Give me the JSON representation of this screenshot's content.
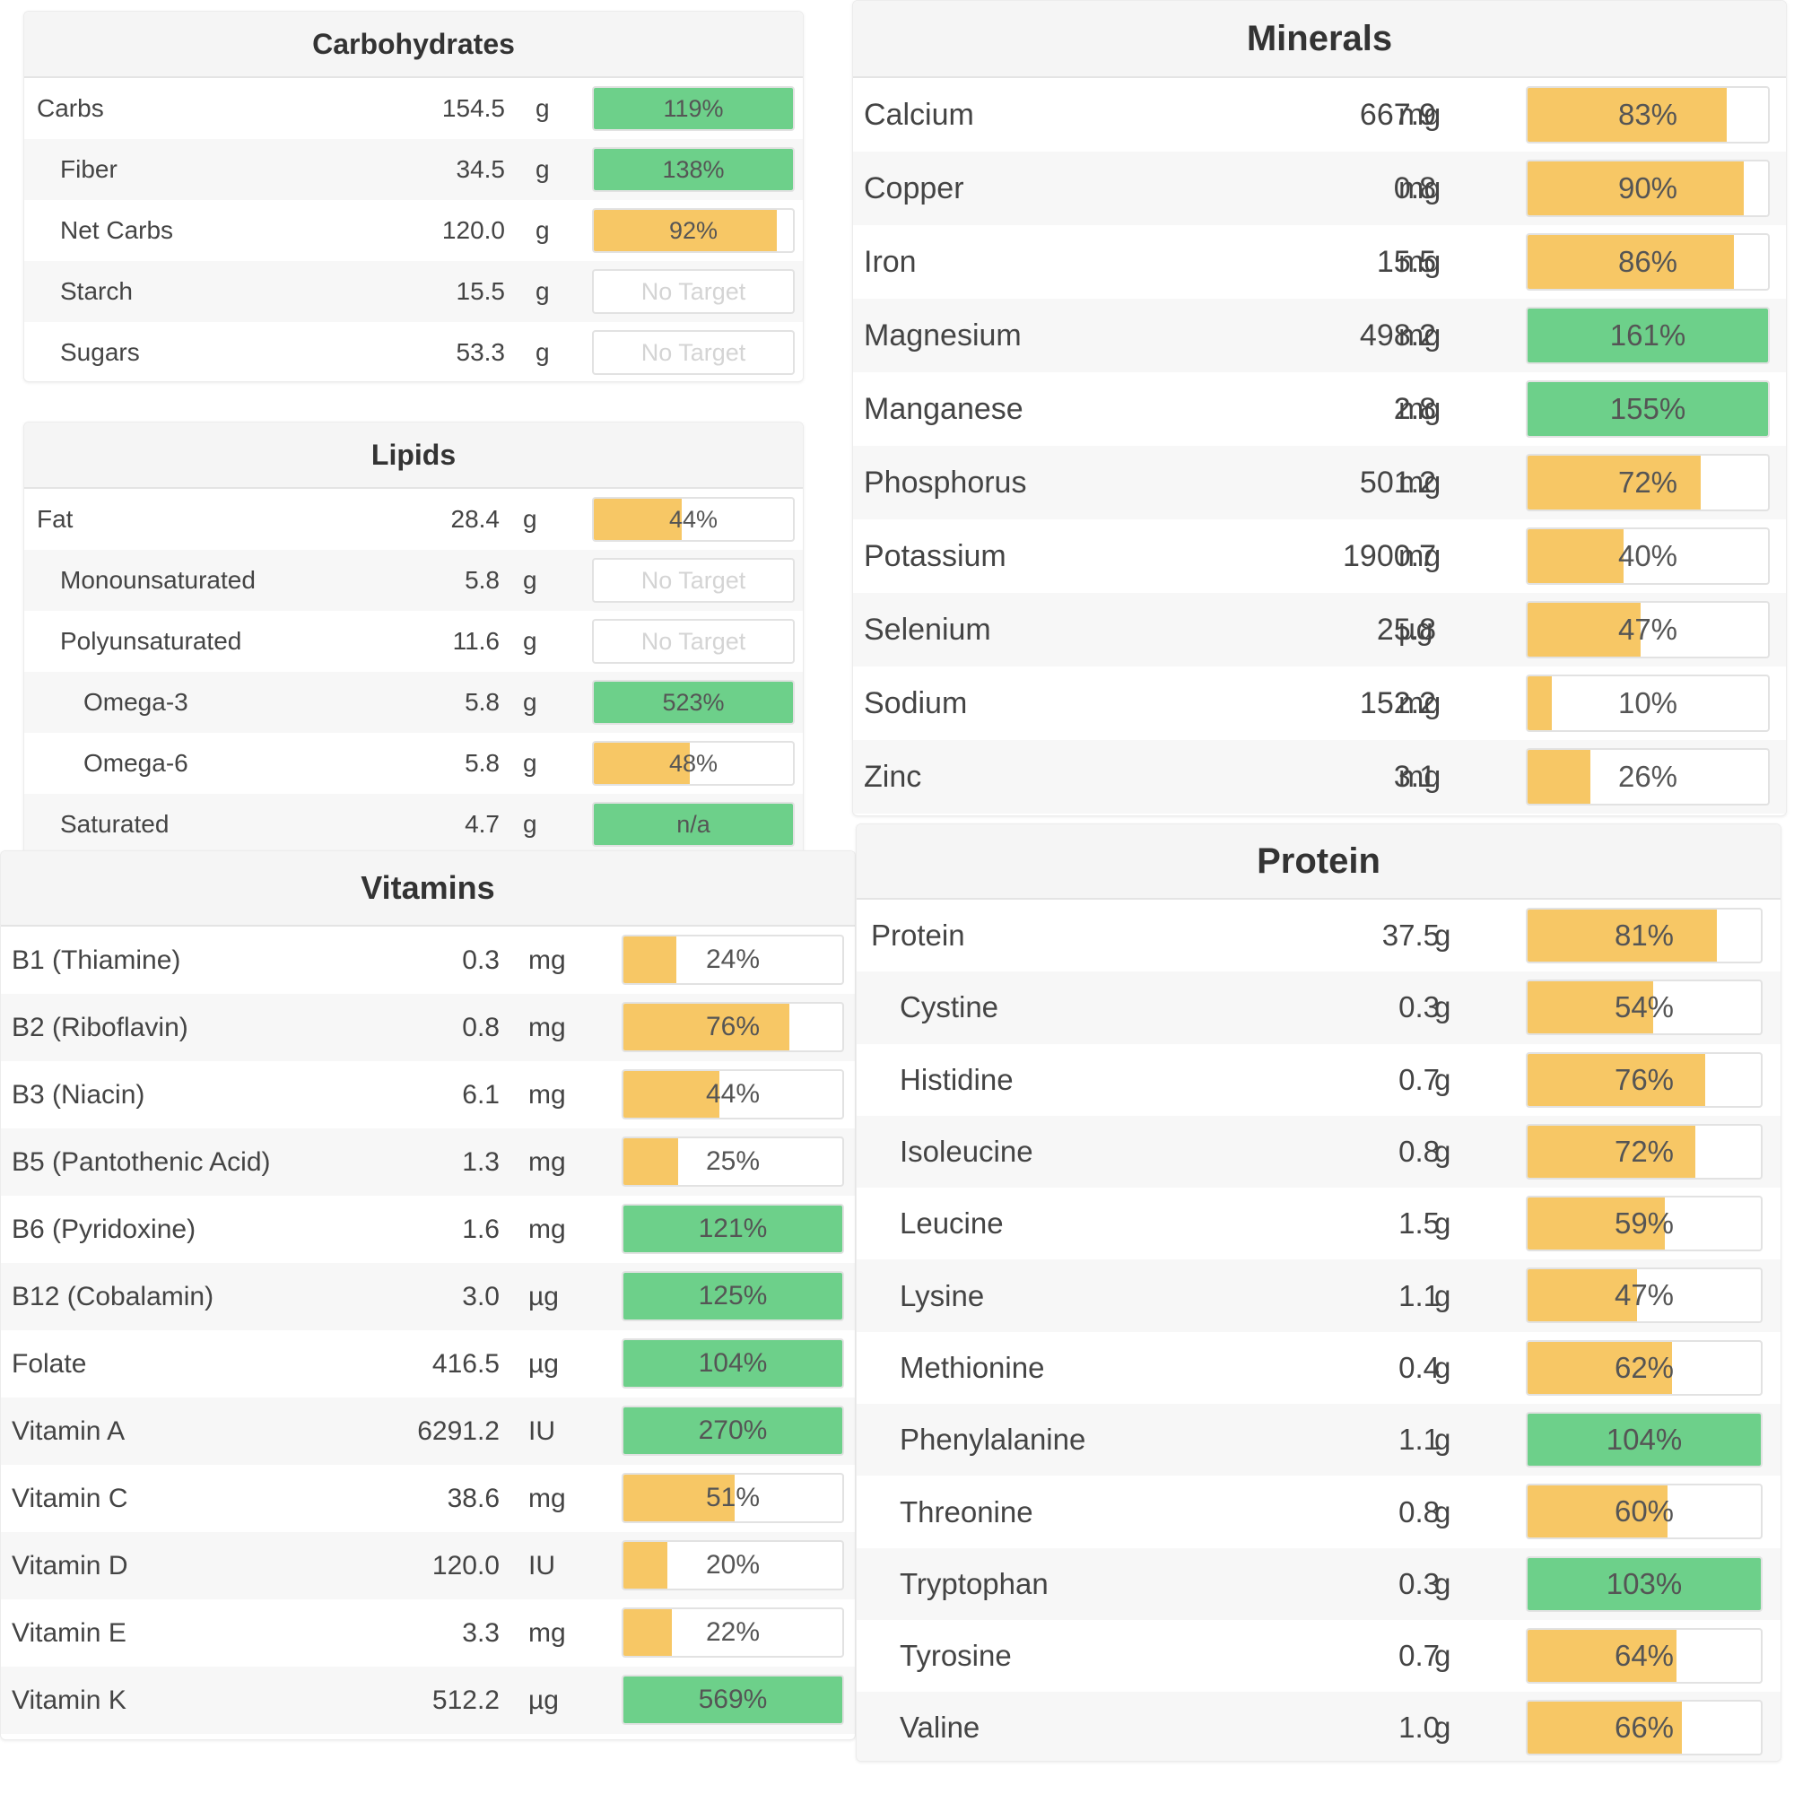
{
  "colors": {
    "green": "#6dd08a",
    "yellow": "#f7c765",
    "header_bg": "#f5f5f5",
    "row_alt": "#f7f7f7"
  },
  "carbohydrates": {
    "title": "Carbohydrates",
    "rows": [
      {
        "name": "Carbs",
        "indent": 0,
        "amount": "154.5",
        "unit": "g",
        "percent_label": "119%",
        "fill": 1.0,
        "color": "green"
      },
      {
        "name": "Fiber",
        "indent": 1,
        "amount": "34.5",
        "unit": "g",
        "percent_label": "138%",
        "fill": 1.0,
        "color": "green"
      },
      {
        "name": "Net Carbs",
        "indent": 1,
        "amount": "120.0",
        "unit": "g",
        "percent_label": "92%",
        "fill": 0.92,
        "color": "yellow"
      },
      {
        "name": "Starch",
        "indent": 1,
        "amount": "15.5",
        "unit": "g",
        "percent_label": "No Target",
        "fill": 0,
        "color": "none"
      },
      {
        "name": "Sugars",
        "indent": 1,
        "amount": "53.3",
        "unit": "g",
        "percent_label": "No Target",
        "fill": 0,
        "color": "none"
      }
    ]
  },
  "lipids": {
    "title": "Lipids",
    "rows": [
      {
        "name": "Fat",
        "indent": 0,
        "amount": "28.4",
        "unit": "g",
        "percent_label": "44%",
        "fill": 0.44,
        "color": "yellow"
      },
      {
        "name": "Monounsaturated",
        "indent": 1,
        "amount": "5.8",
        "unit": "g",
        "percent_label": "No Target",
        "fill": 0,
        "color": "none"
      },
      {
        "name": "Polyunsaturated",
        "indent": 1,
        "amount": "11.6",
        "unit": "g",
        "percent_label": "No Target",
        "fill": 0,
        "color": "none"
      },
      {
        "name": "Omega-3",
        "indent": 2,
        "amount": "5.8",
        "unit": "g",
        "percent_label": "523%",
        "fill": 1.0,
        "color": "green"
      },
      {
        "name": "Omega-6",
        "indent": 2,
        "amount": "5.8",
        "unit": "g",
        "percent_label": "48%",
        "fill": 0.48,
        "color": "yellow"
      },
      {
        "name": "Saturated",
        "indent": 1,
        "amount": "4.7",
        "unit": "g",
        "percent_label": "n/a",
        "fill": 1.0,
        "color": "green"
      }
    ]
  },
  "vitamins": {
    "title": "Vitamins",
    "rows": [
      {
        "name": "B1 (Thiamine)",
        "indent": 0,
        "amount": "0.3",
        "unit": "mg",
        "percent_label": "24%",
        "fill": 0.24,
        "color": "yellow"
      },
      {
        "name": "B2 (Riboflavin)",
        "indent": 0,
        "amount": "0.8",
        "unit": "mg",
        "percent_label": "76%",
        "fill": 0.76,
        "color": "yellow"
      },
      {
        "name": "B3 (Niacin)",
        "indent": 0,
        "amount": "6.1",
        "unit": "mg",
        "percent_label": "44%",
        "fill": 0.44,
        "color": "yellow"
      },
      {
        "name": "B5 (Pantothenic Acid)",
        "indent": 0,
        "amount": "1.3",
        "unit": "mg",
        "percent_label": "25%",
        "fill": 0.25,
        "color": "yellow"
      },
      {
        "name": "B6 (Pyridoxine)",
        "indent": 0,
        "amount": "1.6",
        "unit": "mg",
        "percent_label": "121%",
        "fill": 1.0,
        "color": "green"
      },
      {
        "name": "B12 (Cobalamin)",
        "indent": 0,
        "amount": "3.0",
        "unit": "µg",
        "percent_label": "125%",
        "fill": 1.0,
        "color": "green"
      },
      {
        "name": "Folate",
        "indent": 0,
        "amount": "416.5",
        "unit": "µg",
        "percent_label": "104%",
        "fill": 1.0,
        "color": "green"
      },
      {
        "name": "Vitamin A",
        "indent": 0,
        "amount": "6291.2",
        "unit": "IU",
        "percent_label": "270%",
        "fill": 1.0,
        "color": "green"
      },
      {
        "name": "Vitamin C",
        "indent": 0,
        "amount": "38.6",
        "unit": "mg",
        "percent_label": "51%",
        "fill": 0.51,
        "color": "yellow"
      },
      {
        "name": "Vitamin D",
        "indent": 0,
        "amount": "120.0",
        "unit": "IU",
        "percent_label": "20%",
        "fill": 0.2,
        "color": "yellow"
      },
      {
        "name": "Vitamin E",
        "indent": 0,
        "amount": "3.3",
        "unit": "mg",
        "percent_label": "22%",
        "fill": 0.22,
        "color": "yellow"
      },
      {
        "name": "Vitamin K",
        "indent": 0,
        "amount": "512.2",
        "unit": "µg",
        "percent_label": "569%",
        "fill": 1.0,
        "color": "green"
      }
    ]
  },
  "minerals": {
    "title": "Minerals",
    "rows": [
      {
        "name": "Calcium",
        "indent": 0,
        "amount": "667.9",
        "unit": "mg",
        "percent_label": "83%",
        "fill": 0.83,
        "color": "yellow"
      },
      {
        "name": "Copper",
        "indent": 0,
        "amount": "0.8",
        "unit": "mg",
        "percent_label": "90%",
        "fill": 0.9,
        "color": "yellow"
      },
      {
        "name": "Iron",
        "indent": 0,
        "amount": "15.5",
        "unit": "mg",
        "percent_label": "86%",
        "fill": 0.86,
        "color": "yellow"
      },
      {
        "name": "Magnesium",
        "indent": 0,
        "amount": "498.2",
        "unit": "mg",
        "percent_label": "161%",
        "fill": 1.0,
        "color": "green"
      },
      {
        "name": "Manganese",
        "indent": 0,
        "amount": "2.8",
        "unit": "mg",
        "percent_label": "155%",
        "fill": 1.0,
        "color": "green"
      },
      {
        "name": "Phosphorus",
        "indent": 0,
        "amount": "501.2",
        "unit": "mg",
        "percent_label": "72%",
        "fill": 0.72,
        "color": "yellow"
      },
      {
        "name": "Potassium",
        "indent": 0,
        "amount": "1900.7",
        "unit": "mg",
        "percent_label": "40%",
        "fill": 0.4,
        "color": "yellow"
      },
      {
        "name": "Selenium",
        "indent": 0,
        "amount": "25.8",
        "unit": "µg",
        "percent_label": "47%",
        "fill": 0.47,
        "color": "yellow"
      },
      {
        "name": "Sodium",
        "indent": 0,
        "amount": "152.2",
        "unit": "mg",
        "percent_label": "10%",
        "fill": 0.1,
        "color": "yellow"
      },
      {
        "name": "Zinc",
        "indent": 0,
        "amount": "3.1",
        "unit": "mg",
        "percent_label": "26%",
        "fill": 0.26,
        "color": "yellow"
      }
    ]
  },
  "protein": {
    "title": "Protein",
    "rows": [
      {
        "name": "Protein",
        "indent": 0,
        "amount": "37.5",
        "unit": "g",
        "percent_label": "81%",
        "fill": 0.81,
        "color": "yellow"
      },
      {
        "name": "Cystine",
        "indent": 1,
        "amount": "0.3",
        "unit": "g",
        "percent_label": "54%",
        "fill": 0.54,
        "color": "yellow"
      },
      {
        "name": "Histidine",
        "indent": 1,
        "amount": "0.7",
        "unit": "g",
        "percent_label": "76%",
        "fill": 0.76,
        "color": "yellow"
      },
      {
        "name": "Isoleucine",
        "indent": 1,
        "amount": "0.8",
        "unit": "g",
        "percent_label": "72%",
        "fill": 0.72,
        "color": "yellow"
      },
      {
        "name": "Leucine",
        "indent": 1,
        "amount": "1.5",
        "unit": "g",
        "percent_label": "59%",
        "fill": 0.59,
        "color": "yellow"
      },
      {
        "name": "Lysine",
        "indent": 1,
        "amount": "1.1",
        "unit": "g",
        "percent_label": "47%",
        "fill": 0.47,
        "color": "yellow"
      },
      {
        "name": "Methionine",
        "indent": 1,
        "amount": "0.4",
        "unit": "g",
        "percent_label": "62%",
        "fill": 0.62,
        "color": "yellow"
      },
      {
        "name": "Phenylalanine",
        "indent": 1,
        "amount": "1.1",
        "unit": "g",
        "percent_label": "104%",
        "fill": 1.0,
        "color": "green"
      },
      {
        "name": "Threonine",
        "indent": 1,
        "amount": "0.8",
        "unit": "g",
        "percent_label": "60%",
        "fill": 0.6,
        "color": "yellow"
      },
      {
        "name": "Tryptophan",
        "indent": 1,
        "amount": "0.3",
        "unit": "g",
        "percent_label": "103%",
        "fill": 1.0,
        "color": "green"
      },
      {
        "name": "Tyrosine",
        "indent": 1,
        "amount": "0.7",
        "unit": "g",
        "percent_label": "64%",
        "fill": 0.64,
        "color": "yellow"
      },
      {
        "name": "Valine",
        "indent": 1,
        "amount": "1.0",
        "unit": "g",
        "percent_label": "66%",
        "fill": 0.66,
        "color": "yellow"
      }
    ]
  }
}
